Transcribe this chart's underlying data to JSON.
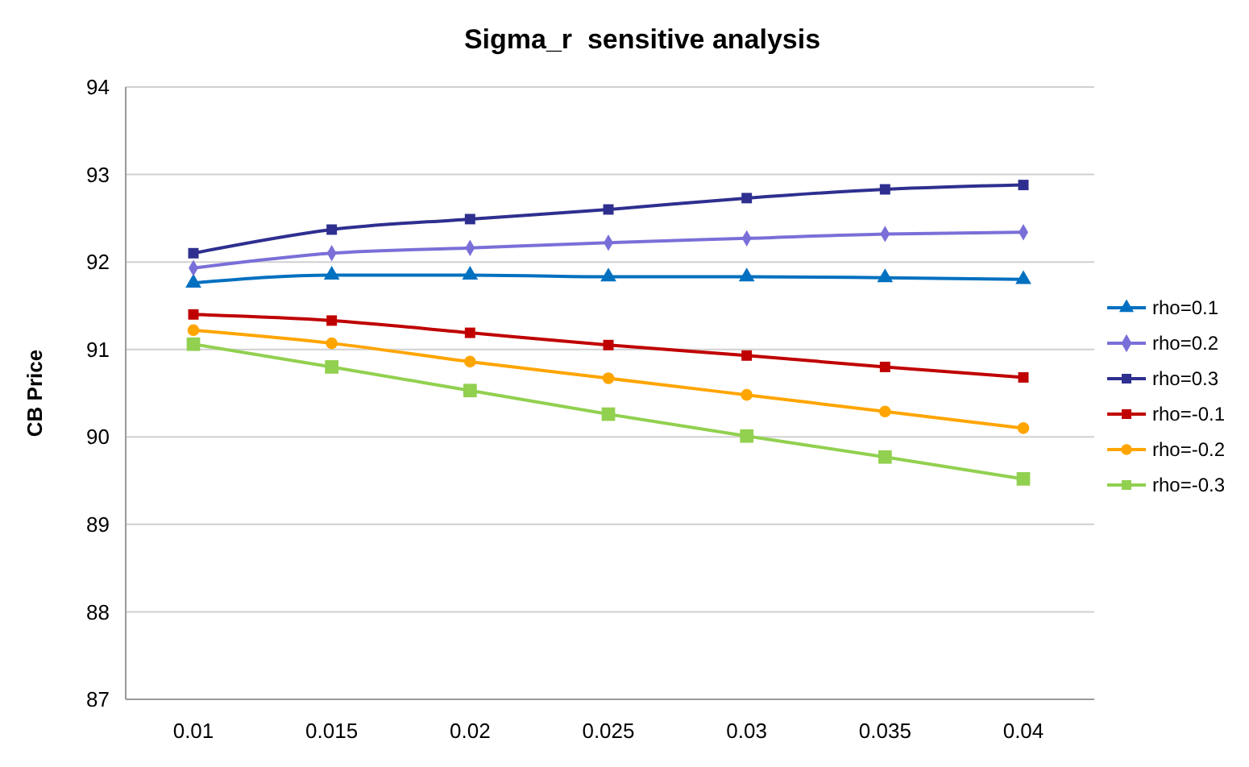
{
  "chart_data": {
    "type": "line",
    "title": "Sigma_r  sensitive analysis",
    "ylabel": "CB Price",
    "categories": [
      "0.01",
      "0.015",
      "0.02",
      "0.025",
      "0.03",
      "0.035",
      "0.04"
    ],
    "ylim": [
      87,
      94
    ],
    "yticks": [
      87,
      88,
      89,
      90,
      91,
      92,
      93,
      94
    ],
    "grid": "y",
    "legend": "right",
    "series": [
      {
        "name": "rho=0.1",
        "color": "#0070c0",
        "marker": "triangle",
        "values": [
          91.76,
          91.85,
          91.85,
          91.83,
          91.83,
          91.82,
          91.8
        ]
      },
      {
        "name": "rho=0.2",
        "color": "#7a6fd8",
        "marker": "diamond",
        "values": [
          91.93,
          92.1,
          92.16,
          92.22,
          92.27,
          92.32,
          92.34
        ]
      },
      {
        "name": "rho=0.3",
        "color": "#2e2f8f",
        "marker": "square",
        "values": [
          92.1,
          92.37,
          92.49,
          92.6,
          92.73,
          92.83,
          92.88
        ]
      },
      {
        "name": "rho=-0.1",
        "color": "#c00000",
        "marker": "square",
        "values": [
          91.4,
          91.33,
          91.19,
          91.05,
          90.93,
          90.8,
          90.68
        ]
      },
      {
        "name": "rho=-0.2",
        "color": "#ffa500",
        "marker": "circle",
        "values": [
          91.22,
          91.07,
          90.86,
          90.67,
          90.48,
          90.29,
          90.1
        ]
      },
      {
        "name": "rho=-0.3",
        "color": "#92d050",
        "marker": "square",
        "values": [
          91.06,
          90.8,
          90.53,
          90.26,
          90.01,
          89.77,
          89.52
        ]
      }
    ]
  }
}
